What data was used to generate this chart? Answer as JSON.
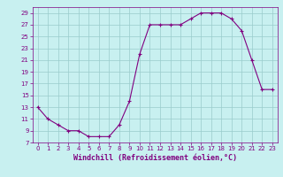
{
  "x": [
    0,
    1,
    2,
    3,
    4,
    5,
    6,
    7,
    8,
    9,
    10,
    11,
    12,
    13,
    14,
    15,
    16,
    17,
    18,
    19,
    20,
    21,
    22,
    23
  ],
  "y": [
    13,
    11,
    10,
    9,
    9,
    8,
    8,
    8,
    10,
    14,
    22,
    27,
    27,
    27,
    27,
    28,
    29,
    29,
    29,
    28,
    26,
    21,
    16,
    16
  ],
  "line_color": "#800080",
  "marker": "+",
  "bg_color": "#c8f0f0",
  "grid_color": "#99cccc",
  "xlabel": "Windchill (Refroidissement éolien,°C)",
  "xlabel_color": "#800080",
  "tick_color": "#800080",
  "xlim": [
    -0.5,
    23.5
  ],
  "ylim": [
    7,
    30
  ],
  "yticks": [
    7,
    9,
    11,
    13,
    15,
    17,
    19,
    21,
    23,
    25,
    27,
    29
  ],
  "xticks": [
    0,
    1,
    2,
    3,
    4,
    5,
    6,
    7,
    8,
    9,
    10,
    11,
    12,
    13,
    14,
    15,
    16,
    17,
    18,
    19,
    20,
    21,
    22,
    23
  ],
  "line_width": 0.8,
  "marker_size": 3
}
